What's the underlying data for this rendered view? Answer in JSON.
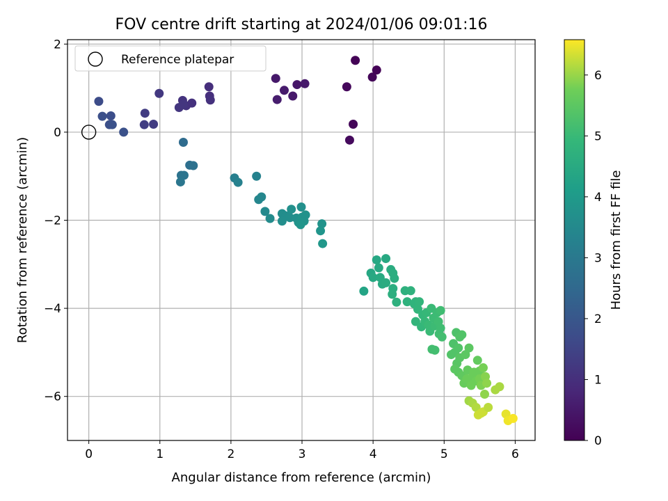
{
  "chart_data": {
    "type": "scatter",
    "title": "FOV centre drift starting at 2024/01/06 09:01:16",
    "xlabel": "Angular distance from reference (arcmin)",
    "ylabel": "Rotation from reference (arcmin)",
    "xlim": [
      -0.3,
      6.28
    ],
    "ylim": [
      -7.0,
      2.1
    ],
    "xticks": [
      0,
      1,
      2,
      3,
      4,
      5,
      6
    ],
    "yticks": [
      2,
      0,
      -2,
      -4,
      -6
    ],
    "xtick_labels": [
      "0",
      "1",
      "2",
      "3",
      "4",
      "5",
      "6"
    ],
    "ytick_labels": [
      "2",
      "0",
      "−2",
      "−4",
      "−6"
    ],
    "grid": true,
    "legend": {
      "placement": "top-left",
      "label": "Reference platepar"
    },
    "reference_point": {
      "x": 0,
      "y": 0
    },
    "colorbar": {
      "label": "Hours from first FF file",
      "range": [
        0,
        6.58
      ],
      "ticks": [
        0,
        1,
        2,
        3,
        4,
        5,
        6
      ],
      "tick_labels": [
        "0",
        "1",
        "2",
        "3",
        "4",
        "5",
        "6"
      ],
      "colormap": "viridis"
    },
    "points": [
      {
        "x": 3.75,
        "y": 1.63,
        "c": 0.05
      },
      {
        "x": 4.05,
        "y": 1.41,
        "c": 0.05
      },
      {
        "x": 3.99,
        "y": 1.25,
        "c": 0.1
      },
      {
        "x": 3.63,
        "y": 1.03,
        "c": 0.15
      },
      {
        "x": 3.72,
        "y": 0.18,
        "c": 0.1
      },
      {
        "x": 3.67,
        "y": -0.18,
        "c": 0.2
      },
      {
        "x": 2.63,
        "y": 1.22,
        "c": 0.5
      },
      {
        "x": 3.04,
        "y": 1.1,
        "c": 0.5
      },
      {
        "x": 2.93,
        "y": 1.08,
        "c": 0.45
      },
      {
        "x": 2.75,
        "y": 0.95,
        "c": 0.55
      },
      {
        "x": 2.87,
        "y": 0.82,
        "c": 0.5
      },
      {
        "x": 2.65,
        "y": 0.74,
        "c": 0.6
      },
      {
        "x": 0.14,
        "y": 0.7,
        "c": 1.7
      },
      {
        "x": 0.19,
        "y": 0.36,
        "c": 1.8
      },
      {
        "x": 0.31,
        "y": 0.37,
        "c": 1.75
      },
      {
        "x": 0.29,
        "y": 0.17,
        "c": 1.8
      },
      {
        "x": 0.33,
        "y": 0.17,
        "c": 1.85
      },
      {
        "x": 0.49,
        "y": 0.0,
        "c": 1.85
      },
      {
        "x": 0.79,
        "y": 0.43,
        "c": 1.3
      },
      {
        "x": 0.78,
        "y": 0.17,
        "c": 1.35
      },
      {
        "x": 0.91,
        "y": 0.18,
        "c": 1.3
      },
      {
        "x": 0.99,
        "y": 0.88,
        "c": 1.2
      },
      {
        "x": 1.27,
        "y": 0.56,
        "c": 1.15
      },
      {
        "x": 1.32,
        "y": 0.72,
        "c": 1.1
      },
      {
        "x": 1.37,
        "y": 0.6,
        "c": 1.1
      },
      {
        "x": 1.45,
        "y": 0.66,
        "c": 1.05
      },
      {
        "x": 1.33,
        "y": 0.63,
        "c": 1.15
      },
      {
        "x": 1.69,
        "y": 1.03,
        "c": 1.0
      },
      {
        "x": 1.7,
        "y": 0.82,
        "c": 1.0
      },
      {
        "x": 1.71,
        "y": 0.73,
        "c": 1.05
      },
      {
        "x": 1.33,
        "y": -0.23,
        "c": 2.6
      },
      {
        "x": 1.3,
        "y": -0.98,
        "c": 2.8
      },
      {
        "x": 1.34,
        "y": -0.98,
        "c": 2.85
      },
      {
        "x": 1.29,
        "y": -1.13,
        "c": 2.9
      },
      {
        "x": 1.42,
        "y": -0.75,
        "c": 2.7
      },
      {
        "x": 1.47,
        "y": -0.76,
        "c": 2.75
      },
      {
        "x": 2.05,
        "y": -1.04,
        "c": 3.2
      },
      {
        "x": 2.1,
        "y": -1.14,
        "c": 3.25
      },
      {
        "x": 2.36,
        "y": -1.0,
        "c": 3.3
      },
      {
        "x": 2.39,
        "y": -1.53,
        "c": 3.4
      },
      {
        "x": 2.43,
        "y": -1.47,
        "c": 3.45
      },
      {
        "x": 2.48,
        "y": -1.8,
        "c": 3.5
      },
      {
        "x": 2.55,
        "y": -1.96,
        "c": 3.55
      },
      {
        "x": 2.72,
        "y": -1.85,
        "c": 3.6
      },
      {
        "x": 2.77,
        "y": -1.9,
        "c": 3.6
      },
      {
        "x": 2.72,
        "y": -2.02,
        "c": 3.65
      },
      {
        "x": 2.83,
        "y": -1.94,
        "c": 3.65
      },
      {
        "x": 2.85,
        "y": -1.75,
        "c": 3.7
      },
      {
        "x": 2.92,
        "y": -1.95,
        "c": 3.7
      },
      {
        "x": 2.95,
        "y": -2.05,
        "c": 3.75
      },
      {
        "x": 2.99,
        "y": -1.7,
        "c": 3.7
      },
      {
        "x": 3.0,
        "y": -1.93,
        "c": 3.8
      },
      {
        "x": 3.03,
        "y": -2.02,
        "c": 3.8
      },
      {
        "x": 3.05,
        "y": -1.88,
        "c": 3.75
      },
      {
        "x": 2.98,
        "y": -2.1,
        "c": 3.85
      },
      {
        "x": 3.28,
        "y": -2.08,
        "c": 3.8
      },
      {
        "x": 3.26,
        "y": -2.24,
        "c": 3.85
      },
      {
        "x": 3.29,
        "y": -2.53,
        "c": 3.9
      },
      {
        "x": 3.87,
        "y": -3.61,
        "c": 4.3
      },
      {
        "x": 3.97,
        "y": -3.2,
        "c": 4.4
      },
      {
        "x": 4.0,
        "y": -3.3,
        "c": 4.45
      },
      {
        "x": 4.05,
        "y": -2.9,
        "c": 4.4
      },
      {
        "x": 4.08,
        "y": -3.08,
        "c": 4.45
      },
      {
        "x": 4.1,
        "y": -3.3,
        "c": 4.5
      },
      {
        "x": 4.13,
        "y": -3.45,
        "c": 4.5
      },
      {
        "x": 4.18,
        "y": -3.42,
        "c": 4.55
      },
      {
        "x": 4.18,
        "y": -2.87,
        "c": 4.45
      },
      {
        "x": 4.25,
        "y": -3.12,
        "c": 4.55
      },
      {
        "x": 4.28,
        "y": -3.2,
        "c": 4.6
      },
      {
        "x": 4.3,
        "y": -3.32,
        "c": 4.6
      },
      {
        "x": 4.28,
        "y": -3.55,
        "c": 4.6
      },
      {
        "x": 4.27,
        "y": -3.68,
        "c": 4.65
      },
      {
        "x": 4.33,
        "y": -3.86,
        "c": 4.7
      },
      {
        "x": 4.45,
        "y": -3.6,
        "c": 4.7
      },
      {
        "x": 4.48,
        "y": -3.85,
        "c": 4.75
      },
      {
        "x": 4.53,
        "y": -3.6,
        "c": 4.75
      },
      {
        "x": 4.58,
        "y": -3.9,
        "c": 4.8
      },
      {
        "x": 4.6,
        "y": -3.85,
        "c": 4.8
      },
      {
        "x": 4.63,
        "y": -4.02,
        "c": 4.85
      },
      {
        "x": 4.65,
        "y": -3.85,
        "c": 4.85
      },
      {
        "x": 4.6,
        "y": -4.3,
        "c": 4.85
      },
      {
        "x": 4.68,
        "y": -4.42,
        "c": 4.9
      },
      {
        "x": 4.7,
        "y": -4.15,
        "c": 4.9
      },
      {
        "x": 4.73,
        "y": -4.3,
        "c": 4.95
      },
      {
        "x": 4.75,
        "y": -4.1,
        "c": 4.95
      },
      {
        "x": 4.78,
        "y": -4.38,
        "c": 5.0
      },
      {
        "x": 4.8,
        "y": -4.52,
        "c": 5.0
      },
      {
        "x": 4.82,
        "y": -4.0,
        "c": 5.0
      },
      {
        "x": 4.85,
        "y": -4.22,
        "c": 5.05
      },
      {
        "x": 4.87,
        "y": -4.4,
        "c": 5.05
      },
      {
        "x": 4.9,
        "y": -4.1,
        "c": 5.05
      },
      {
        "x": 4.92,
        "y": -4.3,
        "c": 5.1
      },
      {
        "x": 4.93,
        "y": -4.58,
        "c": 5.1
      },
      {
        "x": 4.95,
        "y": -4.45,
        "c": 5.1
      },
      {
        "x": 4.97,
        "y": -4.65,
        "c": 5.15
      },
      {
        "x": 4.95,
        "y": -4.05,
        "c": 5.1
      },
      {
        "x": 4.83,
        "y": -4.93,
        "c": 5.15
      },
      {
        "x": 4.87,
        "y": -4.95,
        "c": 5.15
      },
      {
        "x": 5.1,
        "y": -5.05,
        "c": 5.35
      },
      {
        "x": 5.13,
        "y": -4.8,
        "c": 5.3
      },
      {
        "x": 5.15,
        "y": -5.0,
        "c": 5.35
      },
      {
        "x": 5.17,
        "y": -4.55,
        "c": 5.3
      },
      {
        "x": 5.2,
        "y": -4.9,
        "c": 5.35
      },
      {
        "x": 5.22,
        "y": -4.65,
        "c": 5.35
      },
      {
        "x": 5.25,
        "y": -4.6,
        "c": 5.35
      },
      {
        "x": 5.18,
        "y": -5.25,
        "c": 5.45
      },
      {
        "x": 5.22,
        "y": -5.12,
        "c": 5.45
      },
      {
        "x": 5.15,
        "y": -5.38,
        "c": 5.5
      },
      {
        "x": 5.2,
        "y": -5.45,
        "c": 5.5
      },
      {
        "x": 5.25,
        "y": -5.53,
        "c": 5.55
      },
      {
        "x": 5.3,
        "y": -5.05,
        "c": 5.5
      },
      {
        "x": 5.33,
        "y": -5.4,
        "c": 5.6
      },
      {
        "x": 5.35,
        "y": -4.9,
        "c": 5.5
      },
      {
        "x": 5.28,
        "y": -5.7,
        "c": 5.65
      },
      {
        "x": 5.32,
        "y": -5.6,
        "c": 5.7
      },
      {
        "x": 5.38,
        "y": -5.75,
        "c": 5.75
      },
      {
        "x": 5.4,
        "y": -5.55,
        "c": 5.7
      },
      {
        "x": 5.42,
        "y": -5.45,
        "c": 5.7
      },
      {
        "x": 5.45,
        "y": -5.65,
        "c": 5.75
      },
      {
        "x": 5.47,
        "y": -5.18,
        "c": 5.6
      },
      {
        "x": 5.5,
        "y": -5.42,
        "c": 5.7
      },
      {
        "x": 5.5,
        "y": -5.6,
        "c": 5.8
      },
      {
        "x": 5.52,
        "y": -5.75,
        "c": 5.85
      },
      {
        "x": 5.55,
        "y": -5.35,
        "c": 5.8
      },
      {
        "x": 5.57,
        "y": -5.95,
        "c": 5.95
      },
      {
        "x": 5.58,
        "y": -5.55,
        "c": 5.9
      },
      {
        "x": 5.6,
        "y": -5.7,
        "c": 5.95
      },
      {
        "x": 5.35,
        "y": -6.1,
        "c": 6.05
      },
      {
        "x": 5.4,
        "y": -6.15,
        "c": 6.1
      },
      {
        "x": 5.45,
        "y": -6.25,
        "c": 6.15
      },
      {
        "x": 5.48,
        "y": -6.42,
        "c": 6.3
      },
      {
        "x": 5.52,
        "y": -6.38,
        "c": 6.3
      },
      {
        "x": 5.55,
        "y": -6.35,
        "c": 6.3
      },
      {
        "x": 5.62,
        "y": -6.25,
        "c": 6.2
      },
      {
        "x": 5.72,
        "y": -5.85,
        "c": 6.1
      },
      {
        "x": 5.78,
        "y": -5.78,
        "c": 6.1
      },
      {
        "x": 5.87,
        "y": -6.4,
        "c": 6.45
      },
      {
        "x": 5.9,
        "y": -6.55,
        "c": 6.5
      },
      {
        "x": 5.97,
        "y": -6.5,
        "c": 6.55
      }
    ]
  }
}
